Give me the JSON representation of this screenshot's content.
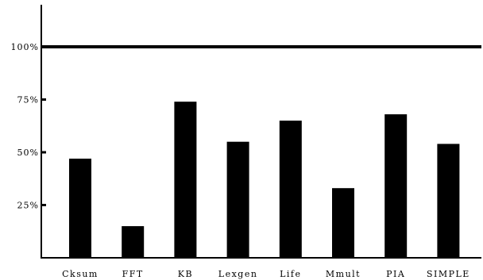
{
  "chart_data": {
    "type": "bar",
    "title": "",
    "xlabel": "",
    "ylabel": "",
    "categories": [
      "Cksum",
      "FFT",
      "KB",
      "Lexgen",
      "Life",
      "Mmult",
      "PIA",
      "SIMPLE"
    ],
    "values": [
      47,
      15,
      74,
      55,
      65,
      33,
      68,
      54
    ],
    "ylim": [
      0,
      120
    ],
    "yticks": [
      {
        "value": 25,
        "label": "25%"
      },
      {
        "value": 50,
        "label": "50%"
      },
      {
        "value": 75,
        "label": "75%"
      },
      {
        "value": 100,
        "label": "100%"
      }
    ],
    "reference_line": 100,
    "bar_color": "#000000",
    "grid": false,
    "legend": "none"
  }
}
